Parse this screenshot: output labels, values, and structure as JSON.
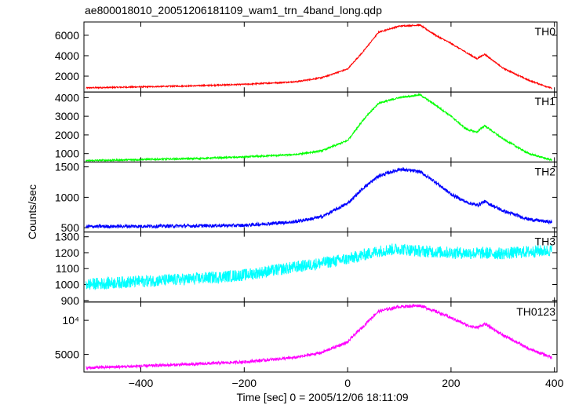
{
  "chart_data": {
    "type": "line",
    "title": "ae800018010_20051206181109_wam1_trn_4band_long.qdp",
    "xlabel": "Time [sec] 0 = 2005/12/06 18:11:09",
    "ylabel": "Counts/sec",
    "xlim": [
      -510,
      405
    ],
    "x_ticks": [
      -400,
      -200,
      0,
      200,
      400
    ],
    "grid": false,
    "legend": "none",
    "panels": [
      {
        "name": "TH0",
        "color": "#ff0000",
        "ylim": [
          450,
          7300
        ],
        "yscale": "linear",
        "y_ticks": [
          2000,
          4000,
          6000
        ],
        "noise": 60,
        "x": [
          -510,
          -400,
          -300,
          -200,
          -100,
          -50,
          0,
          30,
          60,
          100,
          140,
          170,
          200,
          230,
          250,
          265,
          300,
          350,
          395
        ],
        "y": [
          850,
          950,
          1050,
          1200,
          1450,
          1850,
          2700,
          4400,
          6300,
          6900,
          7000,
          6000,
          5200,
          4300,
          3700,
          4150,
          2800,
          1600,
          800
        ]
      },
      {
        "name": "TH1",
        "color": "#00ff00",
        "ylim": [
          550,
          4300
        ],
        "yscale": "linear",
        "y_ticks": [
          1000,
          2000,
          3000,
          4000
        ],
        "noise": 45,
        "x": [
          -510,
          -400,
          -300,
          -200,
          -100,
          -50,
          0,
          30,
          60,
          100,
          140,
          170,
          200,
          230,
          250,
          265,
          300,
          350,
          395
        ],
        "y": [
          620,
          680,
          730,
          820,
          950,
          1150,
          1700,
          2800,
          3700,
          4000,
          4150,
          3600,
          3000,
          2300,
          2150,
          2500,
          1800,
          1000,
          650
        ]
      },
      {
        "name": "TH2",
        "color": "#0000ff",
        "ylim": [
          430,
          1580
        ],
        "yscale": "linear",
        "y_ticks": [
          500,
          1000,
          1500
        ],
        "noise": 28,
        "x": [
          -510,
          -400,
          -300,
          -200,
          -100,
          -50,
          0,
          30,
          60,
          100,
          140,
          170,
          200,
          230,
          250,
          265,
          300,
          350,
          395
        ],
        "y": [
          520,
          525,
          530,
          540,
          600,
          680,
          900,
          1150,
          1350,
          1460,
          1420,
          1250,
          1050,
          920,
          870,
          930,
          780,
          640,
          590
        ]
      },
      {
        "name": "TH3",
        "color": "#00ffff",
        "ylim": [
          890,
          1330
        ],
        "yscale": "linear",
        "y_ticks": [
          900,
          1000,
          1100,
          1200,
          1300
        ],
        "noise": 38,
        "x": [
          -510,
          -400,
          -300,
          -200,
          -100,
          0,
          60,
          100,
          140,
          200,
          300,
          395
        ],
        "y": [
          1000,
          1020,
          1035,
          1060,
          1110,
          1160,
          1210,
          1225,
          1210,
          1200,
          1195,
          1215
        ]
      },
      {
        "name": "TH0123",
        "color": "#ff00ff",
        "ylim": [
          3500,
          14500
        ],
        "yscale": "log",
        "y_ticks": [
          5000,
          10000
        ],
        "y_tick_labels": [
          "5000",
          "10⁴"
        ],
        "noise": 45,
        "x": [
          -510,
          -400,
          -300,
          -200,
          -100,
          -50,
          0,
          30,
          60,
          100,
          140,
          170,
          200,
          230,
          250,
          265,
          300,
          350,
          395
        ],
        "y": [
          3800,
          3950,
          4100,
          4300,
          4700,
          5200,
          6400,
          8800,
          12000,
          13200,
          13500,
          12000,
          10500,
          9100,
          8600,
          9300,
          7400,
          5600,
          4700
        ]
      }
    ]
  }
}
